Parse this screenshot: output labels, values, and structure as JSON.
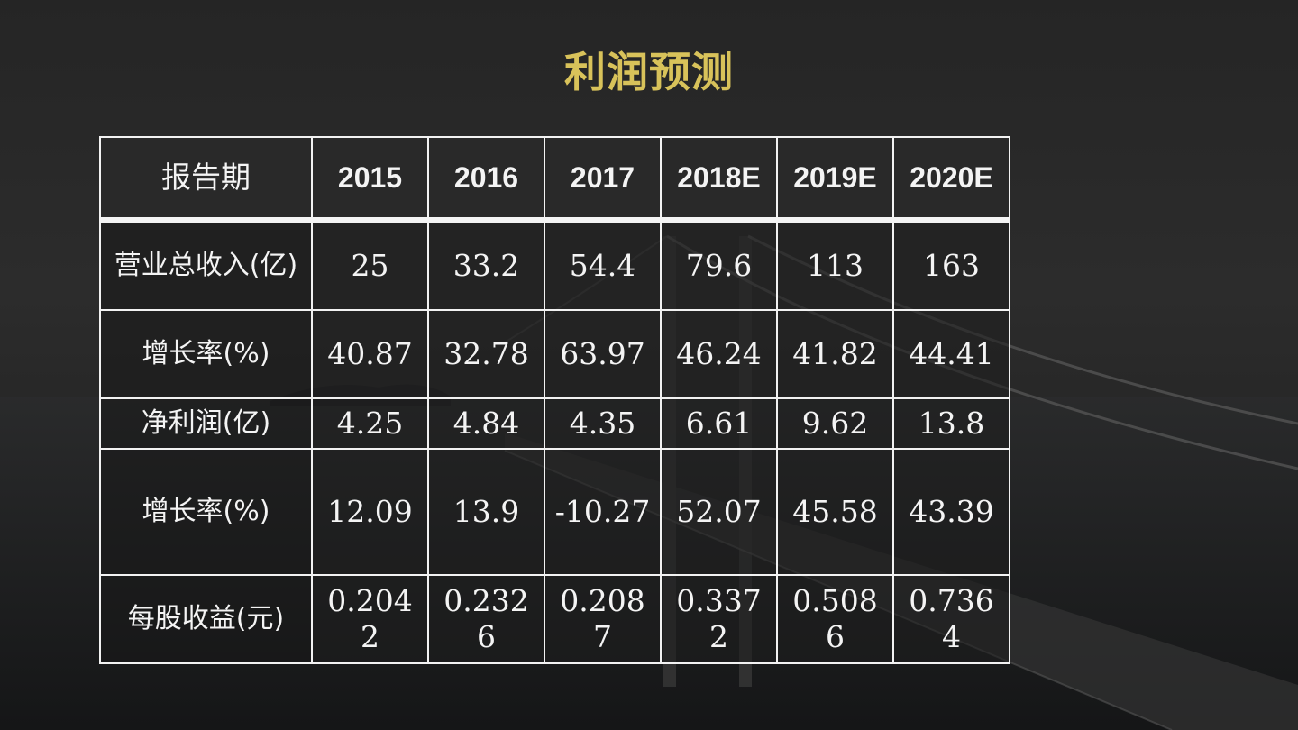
{
  "slide": {
    "title": "利润预测"
  },
  "table": {
    "header": {
      "label": "报告期",
      "years": [
        "2015",
        "2016",
        "2017",
        "2018E",
        "2019E",
        "2020E"
      ]
    },
    "rows": [
      {
        "label": "营业总收入(亿)",
        "values": [
          "25",
          "33.2",
          "54.4",
          "79.6",
          "113",
          "163"
        ]
      },
      {
        "label": "增长率(%)",
        "values": [
          "40.87",
          "32.78",
          "63.97",
          "46.24",
          "41.82",
          "44.41"
        ]
      },
      {
        "label": "净利润(亿)",
        "values": [
          "4.25",
          "4.84",
          "4.35",
          "6.61",
          "9.62",
          "13.8"
        ]
      },
      {
        "label": "增长率(%)",
        "values": [
          "12.09",
          "13.9",
          "-10.27",
          "52.07",
          "45.58",
          "43.39"
        ]
      },
      {
        "label": "每股收益(元)",
        "values": [
          "0.2042",
          "0.2326",
          "0.2087",
          "0.3372",
          "0.5086",
          "0.7364"
        ]
      }
    ]
  },
  "colors": {
    "title": "#d8c25a",
    "border": "#f2f2f2",
    "text": "#f4f4f4",
    "background": "#262626"
  }
}
